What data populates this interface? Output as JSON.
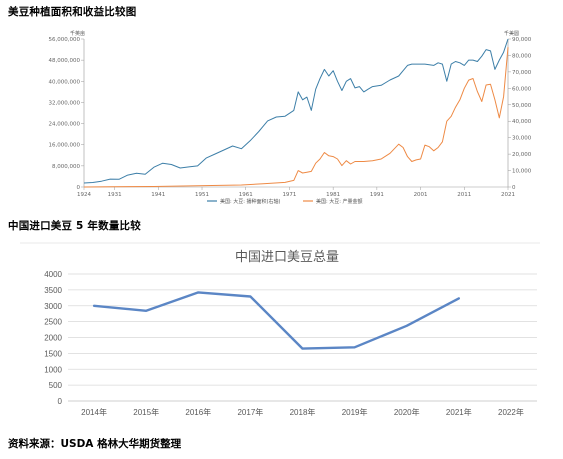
{
  "page": {
    "chart1_title": "美豆种植面积和收益比较图",
    "chart2_title": "中国进口美豆 5 年数量比较",
    "source": "资料来源：USDA 格林大华期货整理"
  },
  "colors": {
    "area": "#3d7fa8",
    "revenue": "#ee8a45",
    "imports": "#5b86c5"
  },
  "chart_data": [
    {
      "type": "line",
      "title": "美豆种植面积和收益比较图",
      "left_unit": "千英亩",
      "right_unit": "千美圆",
      "xlim": [
        1924,
        2021
      ],
      "x_ticks": [
        "1924",
        "1931",
        "1941",
        "1951",
        "1961",
        "1971",
        "1981",
        "1991",
        "2001",
        "2011",
        "2021"
      ],
      "ylim_left": [
        0,
        56000000
      ],
      "ylim_right": [
        0,
        90000
      ],
      "left_ticks": [
        "0",
        "8,000,000",
        "16,000,000",
        "24,000,000",
        "32,000,000",
        "40,000,000",
        "48,000,000",
        "56,000,000"
      ],
      "right_ticks": [
        "0",
        "10,000",
        "20,000",
        "30,000",
        "40,000",
        "50,000",
        "60,000",
        "70,000",
        "80,000",
        "90,000"
      ],
      "legend": [
        "美国: 大豆: 播种面积(右轴)",
        "美国: 大豆: 产量金额"
      ],
      "series": [
        {
          "name": "美国: 大豆: 播种面积(右轴)",
          "axis": "left",
          "x": [
            1924,
            1926,
            1928,
            1930,
            1932,
            1934,
            1936,
            1938,
            1940,
            1942,
            1944,
            1946,
            1948,
            1950,
            1952,
            1954,
            1956,
            1958,
            1960,
            1962,
            1964,
            1966,
            1968,
            1970,
            1972,
            1973,
            1974,
            1975,
            1976,
            1977,
            1978,
            1979,
            1980,
            1981,
            1982,
            1983,
            1984,
            1985,
            1986,
            1987,
            1988,
            1989,
            1990,
            1992,
            1994,
            1996,
            1997,
            1998,
            1999,
            2000,
            2002,
            2004,
            2005,
            2006,
            2007,
            2008,
            2009,
            2010,
            2011,
            2012,
            2013,
            2014,
            2015,
            2016,
            2017,
            2018,
            2019,
            2020,
            2021
          ],
          "values": [
            1500000,
            1700000,
            2200000,
            3000000,
            2900000,
            4500000,
            5200000,
            4800000,
            7500000,
            9000000,
            8500000,
            7200000,
            7600000,
            8000000,
            11000000,
            12500000,
            14000000,
            15500000,
            14500000,
            17500000,
            21000000,
            25000000,
            26500000,
            26800000,
            29000000,
            36000000,
            33000000,
            34000000,
            29000000,
            37000000,
            41000000,
            44500000,
            42000000,
            44000000,
            40000000,
            36500000,
            40000000,
            41000000,
            37500000,
            38000000,
            36000000,
            37000000,
            38000000,
            38500000,
            40500000,
            42000000,
            44000000,
            46000000,
            46500000,
            46500000,
            46500000,
            46000000,
            47000000,
            46500000,
            40000000,
            46500000,
            47500000,
            47000000,
            46000000,
            48000000,
            48000000,
            47500000,
            49500000,
            52000000,
            51500000,
            44500000,
            48000000,
            51000000,
            56000000
          ]
        },
        {
          "name": "美国: 大豆: 产量金额",
          "axis": "right",
          "x": [
            1924,
            1930,
            1940,
            1950,
            1960,
            1965,
            1970,
            1971,
            1972,
            1973,
            1974,
            1975,
            1976,
            1977,
            1978,
            1979,
            1980,
            1981,
            1982,
            1983,
            1984,
            1985,
            1986,
            1988,
            1990,
            1992,
            1994,
            1996,
            1997,
            1998,
            1999,
            2000,
            2001,
            2002,
            2003,
            2004,
            2005,
            2006,
            2007,
            2008,
            2009,
            2010,
            2011,
            2012,
            2013,
            2014,
            2015,
            2016,
            2017,
            2018,
            2019,
            2020,
            2021
          ],
          "values": [
            0,
            100,
            300,
            800,
            1200,
            2000,
            2800,
            3400,
            4000,
            10000,
            8500,
            9000,
            9500,
            14500,
            17000,
            21000,
            19000,
            18500,
            17000,
            13000,
            16000,
            14000,
            15500,
            15500,
            16000,
            17000,
            20500,
            26000,
            24000,
            18500,
            15500,
            16500,
            17000,
            25500,
            24500,
            22000,
            24000,
            27500,
            40000,
            43000,
            48500,
            53000,
            60000,
            65000,
            66000,
            58000,
            52000,
            62000,
            62500,
            53000,
            42000,
            55000,
            85000
          ]
        }
      ]
    },
    {
      "type": "line",
      "title": "中国进口美豆总量",
      "categories": [
        "2014年",
        "2015年",
        "2016年",
        "2017年",
        "2018年",
        "2019年",
        "2020年",
        "2021年",
        "2022年"
      ],
      "y_ticks": [
        "0",
        "500",
        "1000",
        "1500",
        "2000",
        "2500",
        "3000",
        "3500",
        "4000"
      ],
      "ylim": [
        0,
        4000
      ],
      "series": [
        {
          "name": "",
          "values": [
            3000,
            2840,
            3420,
            3290,
            1650,
            1690,
            2370,
            3230,
            null
          ]
        }
      ]
    }
  ]
}
